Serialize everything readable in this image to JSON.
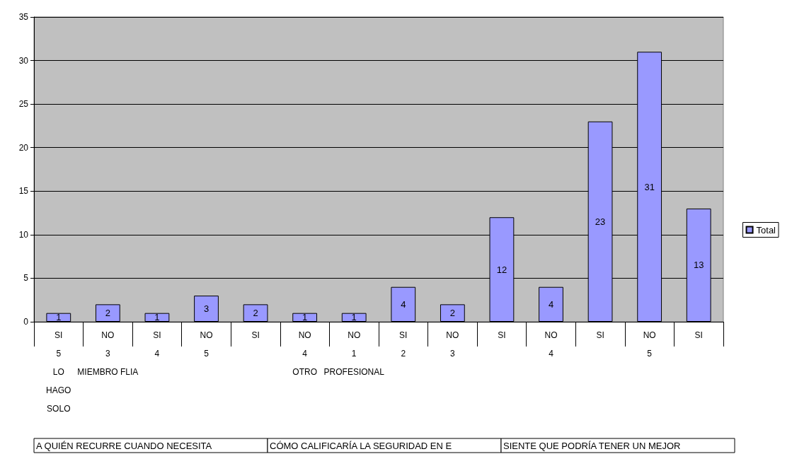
{
  "chart_data": {
    "type": "bar",
    "categories": [
      "SI\n5\nLO\nHAGO\nSOLO",
      "NO\n3\nMIEMBRO FLIA",
      "SI\n4",
      "NO\n5",
      "SI",
      "NO\n4\nOTRO",
      "NO\n1\nPROFESIONAL",
      "SI\n2",
      "NO\n3",
      "SI",
      "NO\n4",
      "SI",
      "NO\n5",
      "SI"
    ],
    "series": [
      {
        "name": "Total",
        "color": "#9999ff",
        "values": [
          1,
          2,
          1,
          3,
          2,
          1,
          1,
          4,
          2,
          12,
          4,
          23,
          31,
          13
        ]
      }
    ],
    "ylim": [
      0,
      35
    ],
    "yticks": [
      0,
      5,
      10,
      15,
      20,
      25,
      30,
      35
    ],
    "grid": "y",
    "legend": "right",
    "data_labels": true,
    "annotations": [
      "A QUIÉN RECURRE CUANDO NECESITA",
      "CÓMO CALIFICARÍA LA SEGURIDAD EN E",
      "SIENTE QUE PODRÍA TENER UN MEJOR"
    ]
  }
}
